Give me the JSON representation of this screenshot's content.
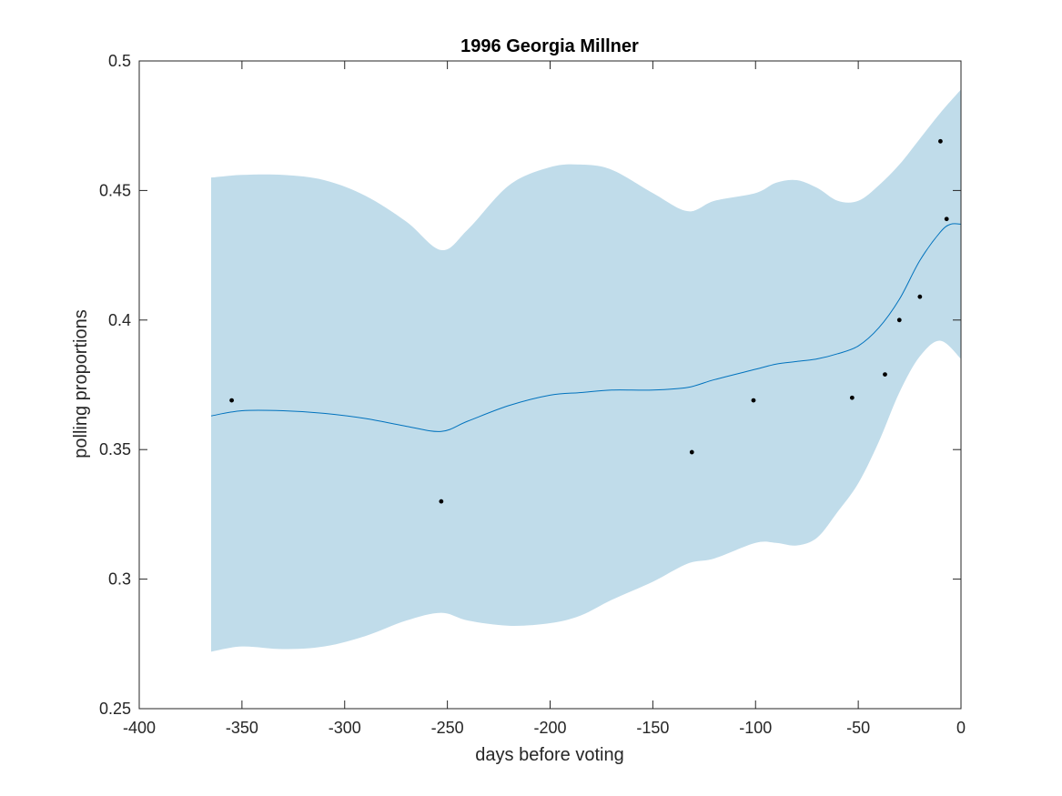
{
  "chart_data": {
    "type": "line",
    "title": "1996 Georgia Millner",
    "xlabel": "days before voting",
    "ylabel": "polling proportions",
    "xlim": [
      -400,
      0
    ],
    "ylim": [
      0.25,
      0.5
    ],
    "xticks": [
      -400,
      -350,
      -300,
      -250,
      -200,
      -150,
      -100,
      -50,
      0
    ],
    "xtick_labels": [
      "-400",
      "-350",
      "-300",
      "-250",
      "-200",
      "-150",
      "-100",
      "-50",
      "0"
    ],
    "yticks": [
      0.25,
      0.3,
      0.35,
      0.4,
      0.45,
      0.5
    ],
    "ytick_labels": [
      "0.25",
      "0.3",
      "0.35",
      "0.4",
      "0.45",
      "0.5"
    ],
    "grid": false,
    "band": {
      "x": [
        -365,
        -350,
        -330,
        -310,
        -290,
        -270,
        -253,
        -240,
        -220,
        -200,
        -185,
        -170,
        -150,
        -133,
        -120,
        -100,
        -90,
        -80,
        -70,
        -60,
        -50,
        -40,
        -30,
        -20,
        -10,
        0
      ],
      "upper": [
        0.455,
        0.456,
        0.456,
        0.454,
        0.448,
        0.438,
        0.427,
        0.435,
        0.452,
        0.459,
        0.46,
        0.458,
        0.449,
        0.442,
        0.446,
        0.449,
        0.453,
        0.454,
        0.451,
        0.446,
        0.446,
        0.452,
        0.46,
        0.47,
        0.48,
        0.489
      ],
      "lower": [
        0.272,
        0.274,
        0.273,
        0.274,
        0.278,
        0.284,
        0.287,
        0.284,
        0.282,
        0.283,
        0.286,
        0.292,
        0.299,
        0.306,
        0.308,
        0.314,
        0.314,
        0.313,
        0.316,
        0.326,
        0.337,
        0.353,
        0.372,
        0.386,
        0.392,
        0.385
      ]
    },
    "series": [
      {
        "x": [
          -365,
          -350,
          -330,
          -310,
          -290,
          -270,
          -253,
          -240,
          -220,
          -200,
          -185,
          -170,
          -150,
          -133,
          -120,
          -100,
          -90,
          -80,
          -70,
          -60,
          -50,
          -40,
          -30,
          -20,
          -10,
          -5,
          0
        ],
        "values": [
          0.363,
          0.365,
          0.365,
          0.364,
          0.362,
          0.359,
          0.357,
          0.361,
          0.367,
          0.371,
          0.372,
          0.373,
          0.373,
          0.374,
          0.377,
          0.381,
          0.383,
          0.384,
          0.385,
          0.387,
          0.39,
          0.397,
          0.408,
          0.423,
          0.434,
          0.437,
          0.437
        ]
      }
    ],
    "points": {
      "x": [
        -355,
        -253,
        -131,
        -101,
        -53,
        -37,
        -30,
        -20,
        -10,
        -7
      ],
      "y": [
        0.369,
        0.33,
        0.349,
        0.369,
        0.37,
        0.379,
        0.4,
        0.409,
        0.469,
        0.439
      ]
    },
    "colors": {
      "band": "#c0dcea",
      "line": "#0072bd",
      "points": "#000000",
      "axes": "#262626"
    }
  }
}
